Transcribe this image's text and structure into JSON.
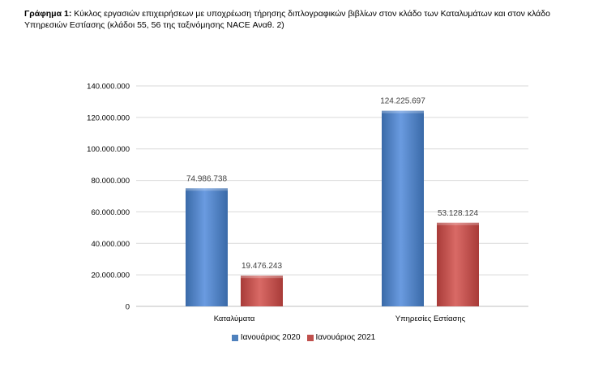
{
  "caption": {
    "label": "Γράφημα 1:",
    "text": " Κύκλος εργασιών επιχειρήσεων με υποχρέωση τήρησης διπλογραφικών βιβλίων στον κλάδο των Καταλυμάτων και στον κλάδο Υπηρεσιών Εστίασης (κλάδοι 55, 56 της ταξινόμησης NACE Αναθ. 2)"
  },
  "chart_data": {
    "type": "bar",
    "title": "",
    "xlabel": "",
    "ylabel": "",
    "categories": [
      "Καταλύματα",
      "Υπηρεσίες Εστίασης"
    ],
    "series": [
      {
        "name": "Ιανουάριος 2020",
        "values": [
          74986738,
          124225697
        ],
        "labels": [
          "74.986.738",
          "124.225.697"
        ],
        "color": "#4f81bd"
      },
      {
        "name": "Ιανουάριος 2021",
        "values": [
          19476243,
          53128124
        ],
        "labels": [
          "19.476.243",
          "53.128.124"
        ],
        "color": "#c0504d"
      }
    ],
    "ylim": [
      0,
      140000000
    ],
    "yticks": [
      0,
      20000000,
      40000000,
      60000000,
      80000000,
      100000000,
      120000000,
      140000000
    ],
    "ytick_labels": [
      "0",
      "20.000.000",
      "40.000.000",
      "60.000.000",
      "80.000.000",
      "100.000.000",
      "120.000.000",
      "140.000.000"
    ],
    "grid": true,
    "legend_position": "bottom",
    "colors": {
      "gridline": "#d9d9d9",
      "axis": "#bfbfbf"
    }
  }
}
